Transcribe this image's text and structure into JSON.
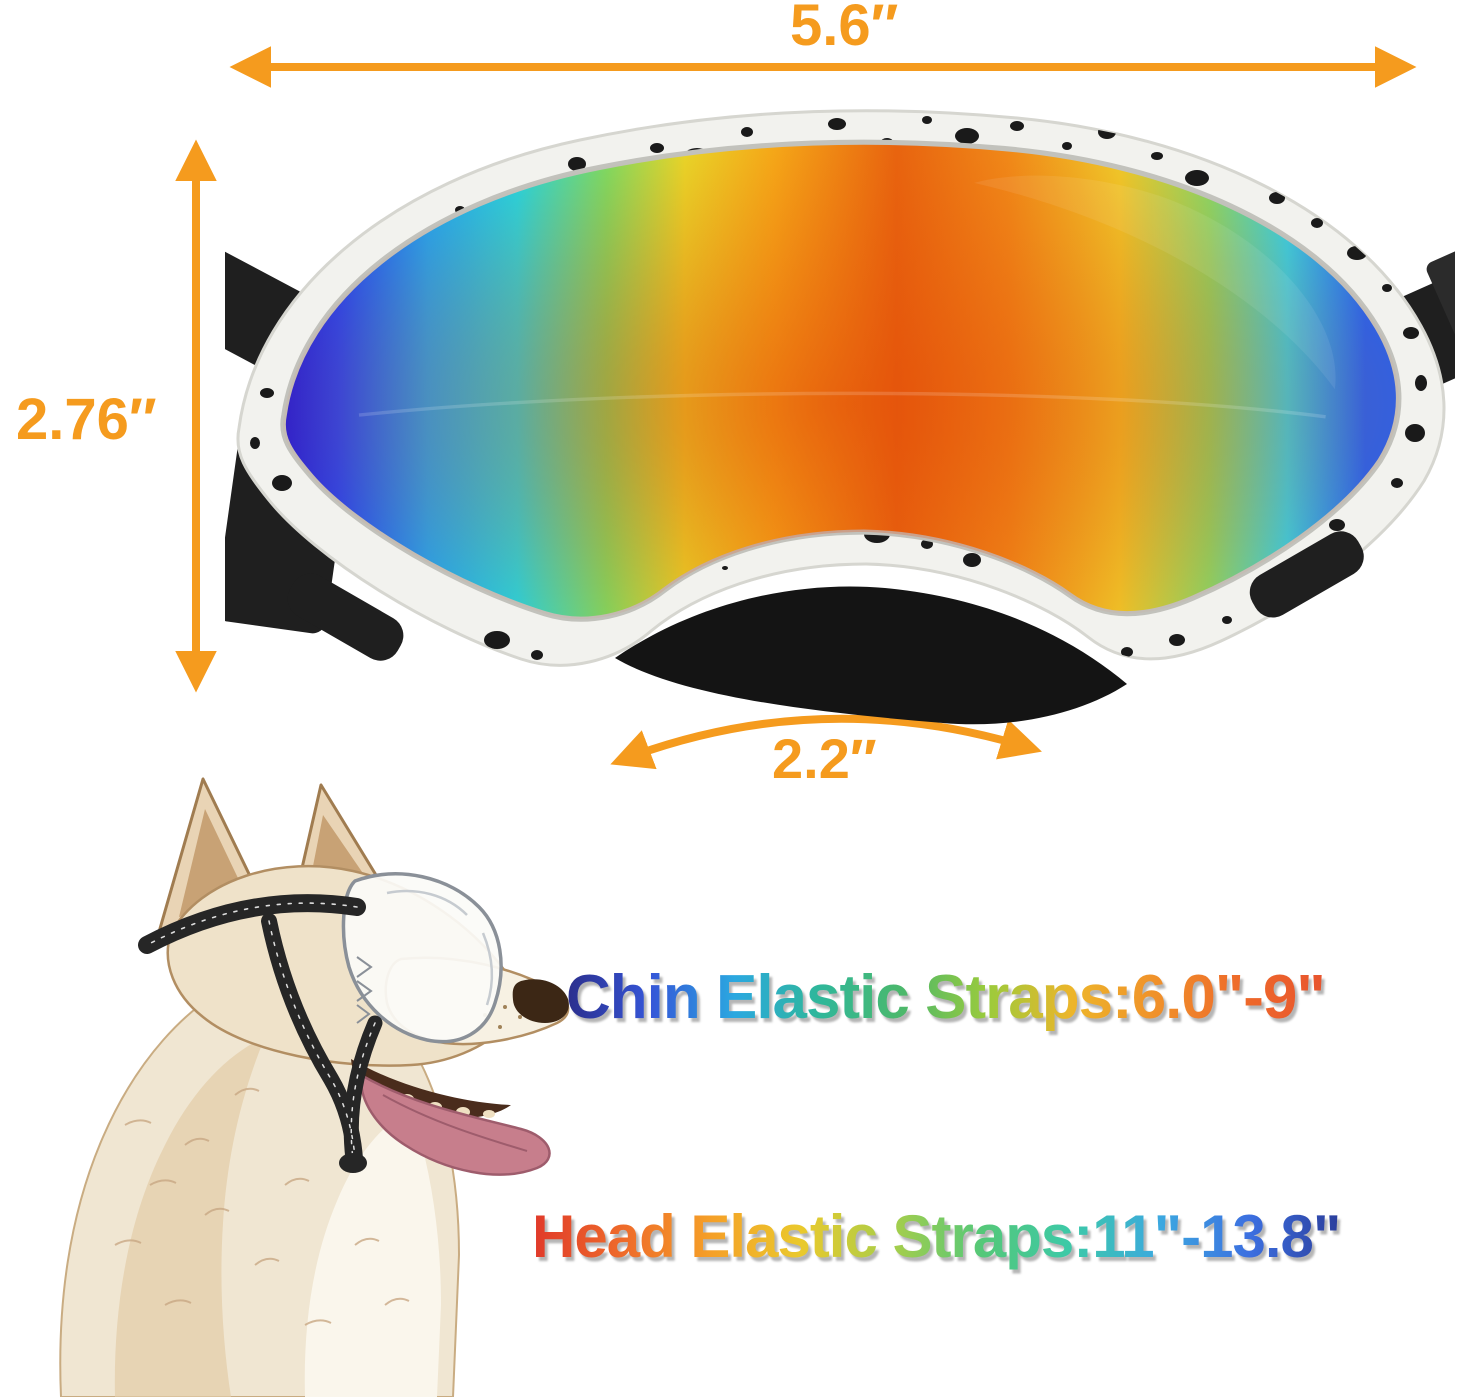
{
  "dimensions": {
    "lens_width": {
      "label": "5.6″"
    },
    "lens_height": {
      "label": "2.76″"
    },
    "nose_bridge": {
      "label": "2.2″"
    },
    "accent_color": "#F59B1E"
  },
  "straps": {
    "chin": {
      "label": "Chin Elastic Straps:6.0\"-9\"",
      "gradient": [
        "#2B2E8C",
        "#3556D8",
        "#2BA8E0",
        "#2FB79A",
        "#4CB86B",
        "#9BCB3C",
        "#EDB52A",
        "#F0912A",
        "#EE6A2A",
        "#E8542E"
      ]
    },
    "head": {
      "label": "Head Elastic Straps:11\"-13.8\"",
      "gradient": [
        "#E0392A",
        "#EE6A2A",
        "#F5A028",
        "#EAC92C",
        "#A8CE4A",
        "#55C878",
        "#3CC9A8",
        "#3CA8E0",
        "#3C6FE0",
        "#2B3E9C"
      ]
    }
  },
  "goggles": {
    "frame_color": "#F2F2EE",
    "speckle_color": "#1A1A1A",
    "strap_color": "#1F1F1F",
    "lens_gradient": [
      "#2A1FD0",
      "#2B45E8",
      "#28A0E8",
      "#2BD0D8",
      "#7FD860",
      "#E8D428",
      "#F5A818",
      "#E8640F",
      "#F08818",
      "#EFC428",
      "#8ED060",
      "#3EC8D8",
      "#2B62E8"
    ]
  }
}
